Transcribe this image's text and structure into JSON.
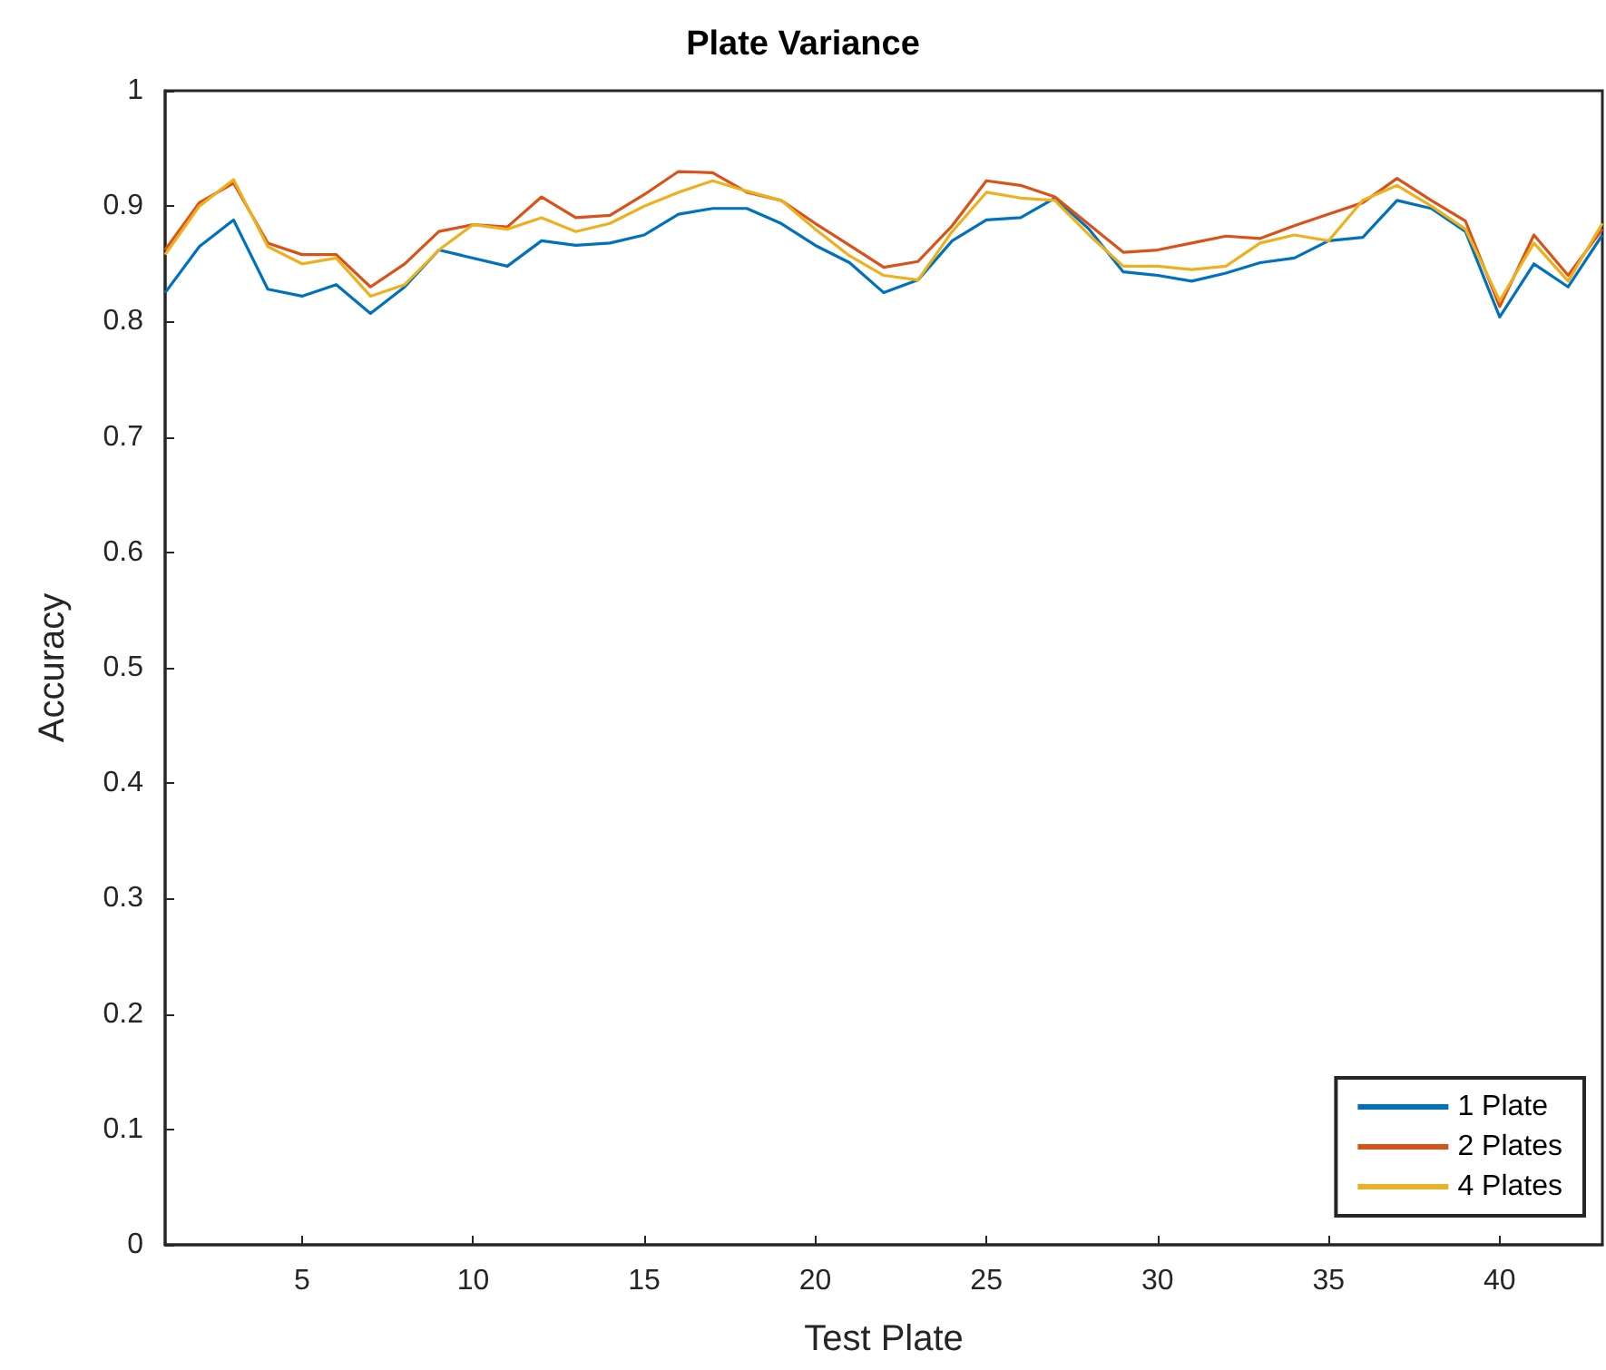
{
  "chart_data": {
    "type": "line",
    "title": "Plate Variance",
    "xlabel": "Test Plate",
    "ylabel": "Accuracy",
    "x": [
      1,
      2,
      3,
      4,
      5,
      6,
      7,
      8,
      9,
      10,
      11,
      12,
      13,
      14,
      15,
      16,
      17,
      18,
      19,
      20,
      21,
      22,
      23,
      24,
      25,
      26,
      27,
      28,
      29,
      30,
      31,
      32,
      33,
      34,
      35,
      36,
      37,
      38,
      39,
      40,
      41,
      42,
      43
    ],
    "series": [
      {
        "name": "1 Plate",
        "color": "#0072bd",
        "values": [
          0.825,
          0.865,
          0.888,
          0.828,
          0.822,
          0.832,
          0.807,
          0.83,
          0.862,
          0.855,
          0.848,
          0.87,
          0.866,
          0.868,
          0.875,
          0.893,
          0.898,
          0.898,
          0.885,
          0.866,
          0.851,
          0.825,
          0.836,
          0.87,
          0.888,
          0.89,
          0.907,
          0.88,
          0.843,
          0.84,
          0.835,
          0.842,
          0.851,
          0.855,
          0.87,
          0.873,
          0.905,
          0.898,
          0.878,
          0.804,
          0.85,
          0.83,
          0.875
        ]
      },
      {
        "name": "2 Plates",
        "color": "#d95319",
        "values": [
          0.862,
          0.903,
          0.92,
          0.868,
          0.858,
          0.858,
          0.83,
          0.85,
          0.878,
          0.884,
          0.882,
          0.908,
          0.89,
          0.892,
          0.91,
          0.93,
          0.929,
          0.912,
          0.905,
          0.885,
          0.866,
          0.847,
          0.852,
          0.883,
          0.922,
          0.918,
          0.908,
          0.884,
          0.86,
          0.862,
          0.868,
          0.874,
          0.872,
          0.883,
          0.893,
          0.903,
          0.924,
          0.905,
          0.887,
          0.813,
          0.875,
          0.84,
          0.88
        ]
      },
      {
        "name": "4 Plates",
        "color": "#edb120",
        "values": [
          0.858,
          0.9,
          0.923,
          0.865,
          0.85,
          0.855,
          0.822,
          0.832,
          0.862,
          0.884,
          0.88,
          0.89,
          0.878,
          0.885,
          0.9,
          0.912,
          0.922,
          0.913,
          0.905,
          0.88,
          0.857,
          0.84,
          0.836,
          0.878,
          0.912,
          0.907,
          0.905,
          0.875,
          0.848,
          0.848,
          0.845,
          0.848,
          0.868,
          0.875,
          0.87,
          0.905,
          0.918,
          0.9,
          0.88,
          0.818,
          0.868,
          0.835,
          0.885
        ]
      }
    ],
    "xlim": [
      1,
      43
    ],
    "xticks": [
      5,
      10,
      15,
      20,
      25,
      30,
      35,
      40
    ],
    "ylim": [
      0,
      1
    ],
    "yticks": [
      0,
      0.1,
      0.2,
      0.3,
      0.4,
      0.5,
      0.6,
      0.7,
      0.8,
      0.9,
      1
    ],
    "legend": "bottom right",
    "grid": false,
    "marker": "none",
    "line_style": "solid"
  }
}
